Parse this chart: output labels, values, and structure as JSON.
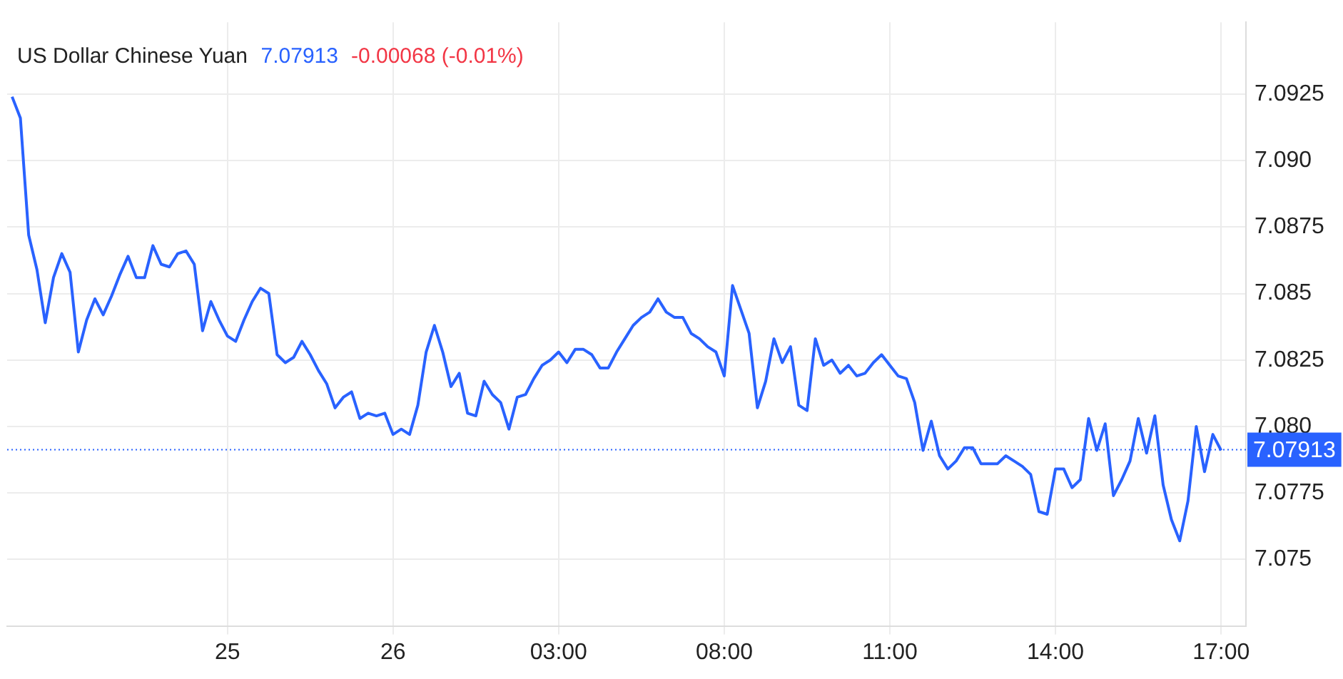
{
  "chart_data": {
    "type": "line",
    "title": "US Dollar Chinese Yuan",
    "annotations": [
      "7.07913",
      "-0.00068 (-0.01%)"
    ],
    "categories": [
      null,
      null,
      null,
      null,
      null,
      null,
      null,
      null,
      null,
      null,
      null,
      null,
      null,
      null,
      null,
      null,
      null,
      null,
      null,
      null,
      null,
      null,
      null,
      null,
      null,
      null,
      "25",
      null,
      null,
      null,
      null,
      null,
      null,
      null,
      null,
      null,
      null,
      null,
      null,
      null,
      null,
      null,
      null,
      null,
      null,
      null,
      "26",
      null,
      null,
      null,
      null,
      null,
      null,
      null,
      null,
      null,
      null,
      null,
      null,
      null,
      null,
      null,
      null,
      null,
      null,
      null,
      "03:00",
      null,
      null,
      null,
      null,
      null,
      null,
      null,
      null,
      null,
      null,
      null,
      null,
      null,
      null,
      null,
      null,
      null,
      null,
      null,
      "08:00",
      null,
      null,
      null,
      null,
      null,
      null,
      null,
      null,
      null,
      null,
      null,
      null,
      null,
      null,
      null,
      null,
      null,
      null,
      null,
      "11:00",
      null,
      null,
      null,
      null,
      null,
      null,
      null,
      null,
      null,
      null,
      null,
      null,
      null,
      null,
      null,
      null,
      null,
      null,
      null,
      "14:00",
      null,
      null,
      null,
      null,
      null,
      null,
      null,
      null,
      null,
      null,
      null,
      null,
      null,
      null,
      null,
      null,
      null,
      null,
      null,
      "17:00"
    ],
    "series": [
      {
        "color": "#2962ff",
        "values": [
          7.0924,
          7.0916,
          7.0872,
          7.0859,
          7.0839,
          7.0856,
          7.0865,
          7.0858,
          7.0828,
          7.084,
          7.0848,
          7.0842,
          7.0849,
          7.0857,
          7.0864,
          7.0856,
          7.0856,
          7.0868,
          7.0861,
          7.086,
          7.0865,
          7.0866,
          7.0861,
          7.0836,
          7.0847,
          7.084,
          7.0834,
          7.0832,
          7.084,
          7.0847,
          7.0852,
          7.085,
          7.0827,
          7.0824,
          7.0826,
          7.0832,
          7.0827,
          7.0821,
          7.0816,
          7.0807,
          7.0811,
          7.0813,
          7.0803,
          7.0805,
          7.0804,
          7.0805,
          7.0797,
          7.0799,
          7.0797,
          7.0808,
          7.0828,
          7.0838,
          7.0828,
          7.0815,
          7.082,
          7.0805,
          7.0804,
          7.0817,
          7.0812,
          7.0809,
          7.0799,
          7.0811,
          7.0812,
          7.0818,
          7.0823,
          7.0825,
          7.0828,
          7.0824,
          7.0829,
          7.0829,
          7.0827,
          7.0822,
          7.0822,
          7.0828,
          7.0833,
          7.0838,
          7.0841,
          7.0843,
          7.0848,
          7.0843,
          7.0841,
          7.0841,
          7.0835,
          7.0833,
          7.083,
          7.0828,
          7.0819,
          7.0853,
          7.0844,
          7.0835,
          7.0807,
          7.0817,
          7.0833,
          7.0824,
          7.083,
          7.0808,
          7.0806,
          7.0833,
          7.0823,
          7.0825,
          7.082,
          7.0823,
          7.0819,
          7.082,
          7.0824,
          7.0827,
          7.0823,
          7.0819,
          7.0818,
          7.0809,
          7.0791,
          7.0802,
          7.0789,
          7.0784,
          7.0787,
          7.0792,
          7.0792,
          7.0786,
          7.0786,
          7.0786,
          7.0789,
          7.0787,
          7.0785,
          7.0782,
          7.0768,
          7.0767,
          7.0784,
          7.0784,
          7.0777,
          7.078,
          7.0803,
          7.0791,
          7.0801,
          7.0774,
          7.078,
          7.0787,
          7.0803,
          7.079,
          7.0804,
          7.0778,
          7.0765,
          7.0757,
          7.0772,
          7.08,
          7.0783,
          7.0797,
          7.0791
        ]
      }
    ],
    "ylim": [
      7.0725,
      7.0952
    ],
    "yticks": [
      7.075,
      7.0775,
      {
        "value": 7.08,
        "label": "7.080"
      },
      7.0825,
      7.085,
      7.0875,
      {
        "value": 7.09,
        "label": "7.090"
      },
      7.0925
    ],
    "ref_lines": [
      {
        "axis": "y",
        "value": 7.07913,
        "label": "7.07913",
        "color": "#2962ff",
        "line_style": "dotted"
      }
    ],
    "grid": true,
    "marker": "none",
    "line_style": "solid"
  }
}
